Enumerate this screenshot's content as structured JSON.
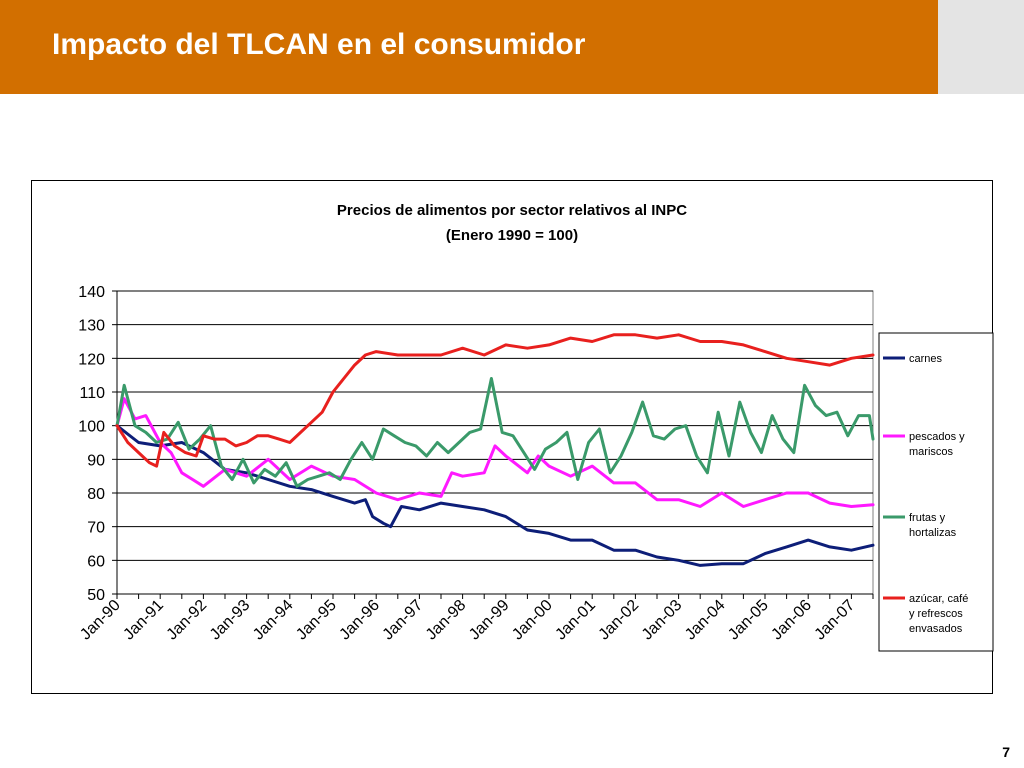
{
  "slide": {
    "title": "Impacto del TLCAN en el consumidor",
    "page_number": "7"
  },
  "colors": {
    "header": "#d26f00",
    "header_side": "#e4e4e4"
  },
  "chart_data": {
    "type": "line",
    "title": "Precios de alimentos por sector relativos al INPC",
    "subtitle": "(Enero 1990 = 100)",
    "xlabel": "",
    "ylabel": "",
    "ylim": [
      50,
      140
    ],
    "yticks": [
      50,
      60,
      70,
      80,
      90,
      100,
      110,
      120,
      130,
      140
    ],
    "xlim": [
      "Jan-90",
      "Jul-07"
    ],
    "xticks": [
      "Jan-90",
      "Jan-91",
      "Jan-92",
      "Jan-93",
      "Jan-94",
      "Jan-95",
      "Jan-96",
      "Jan-97",
      "Jan-98",
      "Jan-99",
      "Jan-00",
      "Jan-01",
      "Jan-02",
      "Jan-03",
      "Jan-04",
      "Jan-05",
      "Jan-06",
      "Jan-07"
    ],
    "grid": "horizontal",
    "legend_position": "right",
    "series": [
      {
        "name": "carnes",
        "color": "#0d1e78",
        "points": [
          [
            "Jan-90",
            100
          ],
          [
            "Jul-90",
            95
          ],
          [
            "Jan-91",
            94
          ],
          [
            "Jul-91",
            95
          ],
          [
            "Jan-92",
            92
          ],
          [
            "Jul-92",
            87
          ],
          [
            "Jan-93",
            86
          ],
          [
            "Jul-93",
            84
          ],
          [
            "Jan-94",
            82
          ],
          [
            "Jul-94",
            81
          ],
          [
            "Jan-95",
            79
          ],
          [
            "Jul-95",
            77
          ],
          [
            "Oct-95",
            78
          ],
          [
            "Dec-95",
            73
          ],
          [
            "Mar-96",
            71
          ],
          [
            "May-96",
            70
          ],
          [
            "Aug-96",
            76
          ],
          [
            "Jan-97",
            75
          ],
          [
            "Jul-97",
            77
          ],
          [
            "Jan-98",
            76
          ],
          [
            "Jul-98",
            75
          ],
          [
            "Jan-99",
            73
          ],
          [
            "Jul-99",
            69
          ],
          [
            "Jan-00",
            68
          ],
          [
            "Jul-00",
            66
          ],
          [
            "Jan-01",
            66
          ],
          [
            "Jul-01",
            63
          ],
          [
            "Jan-02",
            63
          ],
          [
            "Jul-02",
            61
          ],
          [
            "Jan-03",
            60
          ],
          [
            "Jul-03",
            58.5
          ],
          [
            "Jan-04",
            59
          ],
          [
            "Jul-04",
            59
          ],
          [
            "Jan-05",
            62
          ],
          [
            "Jul-05",
            64
          ],
          [
            "Jan-06",
            66
          ],
          [
            "Jul-06",
            64
          ],
          [
            "Jan-07",
            63
          ],
          [
            "Jul-07",
            64.5
          ]
        ]
      },
      {
        "name": "pescados y mariscos",
        "color": "#ff19ff",
        "points": [
          [
            "Jan-90",
            100
          ],
          [
            "Mar-90",
            108
          ],
          [
            "Jun-90",
            102
          ],
          [
            "Sep-90",
            103
          ],
          [
            "Jan-91",
            95
          ],
          [
            "Apr-91",
            92
          ],
          [
            "Jul-91",
            86
          ],
          [
            "Oct-91",
            84
          ],
          [
            "Jan-92",
            82
          ],
          [
            "Jul-92",
            87
          ],
          [
            "Jan-93",
            85
          ],
          [
            "Jul-93",
            90
          ],
          [
            "Jan-94",
            84
          ],
          [
            "Jul-94",
            88
          ],
          [
            "Jan-95",
            85
          ],
          [
            "Jul-95",
            84
          ],
          [
            "Jan-96",
            80
          ],
          [
            "Jul-96",
            78
          ],
          [
            "Jan-97",
            80
          ],
          [
            "Jul-97",
            79
          ],
          [
            "Oct-97",
            86
          ],
          [
            "Jan-98",
            85
          ],
          [
            "Jul-98",
            86
          ],
          [
            "Oct-98",
            94
          ],
          [
            "Jan-99",
            91
          ],
          [
            "Jul-99",
            86
          ],
          [
            "Oct-99",
            91
          ],
          [
            "Jan-00",
            88
          ],
          [
            "Jul-00",
            85
          ],
          [
            "Jan-01",
            88
          ],
          [
            "Jul-01",
            83
          ],
          [
            "Jan-02",
            83
          ],
          [
            "Jul-02",
            78
          ],
          [
            "Jan-03",
            78
          ],
          [
            "Jul-03",
            76
          ],
          [
            "Jan-04",
            80
          ],
          [
            "Jul-04",
            76
          ],
          [
            "Jan-05",
            78
          ],
          [
            "Jul-05",
            80
          ],
          [
            "Jan-06",
            80
          ],
          [
            "Jul-06",
            77
          ],
          [
            "Jan-07",
            76
          ],
          [
            "Jul-07",
            76.5
          ]
        ]
      },
      {
        "name": "frutas y hortalizas",
        "color": "#3a9a6a",
        "points": [
          [
            "Jan-90",
            100
          ],
          [
            "Mar-90",
            112
          ],
          [
            "Jun-90",
            100
          ],
          [
            "Sep-90",
            98
          ],
          [
            "Dec-90",
            95
          ],
          [
            "Mar-91",
            96
          ],
          [
            "Jun-91",
            101
          ],
          [
            "Sep-91",
            93
          ],
          [
            "Dec-91",
            96
          ],
          [
            "Mar-92",
            100
          ],
          [
            "Jun-92",
            88
          ],
          [
            "Sep-92",
            84
          ],
          [
            "Dec-92",
            90
          ],
          [
            "Mar-93",
            83
          ],
          [
            "Jun-93",
            87
          ],
          [
            "Sep-93",
            85
          ],
          [
            "Dec-93",
            89
          ],
          [
            "Mar-94",
            82
          ],
          [
            "Jun-94",
            84
          ],
          [
            "Sep-94",
            85
          ],
          [
            "Dec-94",
            86
          ],
          [
            "Mar-95",
            84
          ],
          [
            "Jun-95",
            90
          ],
          [
            "Sep-95",
            95
          ],
          [
            "Dec-95",
            90
          ],
          [
            "Mar-96",
            99
          ],
          [
            "Jun-96",
            97
          ],
          [
            "Sep-96",
            95
          ],
          [
            "Dec-96",
            94
          ],
          [
            "Mar-97",
            91
          ],
          [
            "Jun-97",
            95
          ],
          [
            "Sep-97",
            92
          ],
          [
            "Dec-97",
            95
          ],
          [
            "Mar-98",
            98
          ],
          [
            "Jun-98",
            99
          ],
          [
            "Sep-98",
            114
          ],
          [
            "Dec-98",
            98
          ],
          [
            "Mar-99",
            97
          ],
          [
            "Jun-99",
            92
          ],
          [
            "Sep-99",
            87
          ],
          [
            "Dec-99",
            93
          ],
          [
            "Mar-00",
            95
          ],
          [
            "Jun-00",
            98
          ],
          [
            "Sep-00",
            84
          ],
          [
            "Dec-00",
            95
          ],
          [
            "Mar-01",
            99
          ],
          [
            "Jun-01",
            86
          ],
          [
            "Sep-01",
            91
          ],
          [
            "Dec-01",
            98
          ],
          [
            "Mar-02",
            107
          ],
          [
            "Jun-02",
            97
          ],
          [
            "Sep-02",
            96
          ],
          [
            "Dec-02",
            99
          ],
          [
            "Mar-03",
            100
          ],
          [
            "Jun-03",
            91
          ],
          [
            "Sep-03",
            86
          ],
          [
            "Dec-03",
            104
          ],
          [
            "Mar-04",
            91
          ],
          [
            "Jun-04",
            107
          ],
          [
            "Sep-04",
            98
          ],
          [
            "Dec-04",
            92
          ],
          [
            "Mar-05",
            103
          ],
          [
            "Jun-05",
            96
          ],
          [
            "Sep-05",
            92
          ],
          [
            "Dec-05",
            112
          ],
          [
            "Mar-06",
            106
          ],
          [
            "Jun-06",
            103
          ],
          [
            "Sep-06",
            104
          ],
          [
            "Dec-06",
            97
          ],
          [
            "Mar-07",
            103
          ],
          [
            "Jun-07",
            103
          ],
          [
            "Jul-07",
            96
          ]
        ]
      },
      {
        "name": "azúcar, café y refrescos envasados",
        "color": "#e8201e",
        "points": [
          [
            "Jan-90",
            100
          ],
          [
            "Apr-90",
            95
          ],
          [
            "Jul-90",
            92
          ],
          [
            "Oct-90",
            89
          ],
          [
            "Dec-90",
            88
          ],
          [
            "Feb-91",
            98
          ],
          [
            "May-91",
            94
          ],
          [
            "Aug-91",
            92
          ],
          [
            "Nov-91",
            91
          ],
          [
            "Jan-92",
            97
          ],
          [
            "Apr-92",
            96
          ],
          [
            "Jul-92",
            96
          ],
          [
            "Oct-92",
            94
          ],
          [
            "Jan-93",
            95
          ],
          [
            "Apr-93",
            97
          ],
          [
            "Jul-93",
            97
          ],
          [
            "Oct-93",
            96
          ],
          [
            "Jan-94",
            95
          ],
          [
            "Apr-94",
            98
          ],
          [
            "Jul-94",
            101
          ],
          [
            "Oct-94",
            104
          ],
          [
            "Jan-95",
            110
          ],
          [
            "Apr-95",
            114
          ],
          [
            "Jul-95",
            118
          ],
          [
            "Oct-95",
            121
          ],
          [
            "Jan-96",
            122
          ],
          [
            "Jul-96",
            121
          ],
          [
            "Jan-97",
            121
          ],
          [
            "Jul-97",
            121
          ],
          [
            "Jan-98",
            123
          ],
          [
            "Jul-98",
            121
          ],
          [
            "Jan-99",
            124
          ],
          [
            "Jul-99",
            123
          ],
          [
            "Jan-00",
            124
          ],
          [
            "Jul-00",
            126
          ],
          [
            "Jan-01",
            125
          ],
          [
            "Jul-01",
            127
          ],
          [
            "Jan-02",
            127
          ],
          [
            "Jul-02",
            126
          ],
          [
            "Jan-03",
            127
          ],
          [
            "Jul-03",
            125
          ],
          [
            "Jan-04",
            125
          ],
          [
            "Jul-04",
            124
          ],
          [
            "Jan-05",
            122
          ],
          [
            "Jul-05",
            120
          ],
          [
            "Jan-06",
            119
          ],
          [
            "Jul-06",
            118
          ],
          [
            "Jan-07",
            120
          ],
          [
            "Jul-07",
            121
          ]
        ]
      }
    ]
  }
}
